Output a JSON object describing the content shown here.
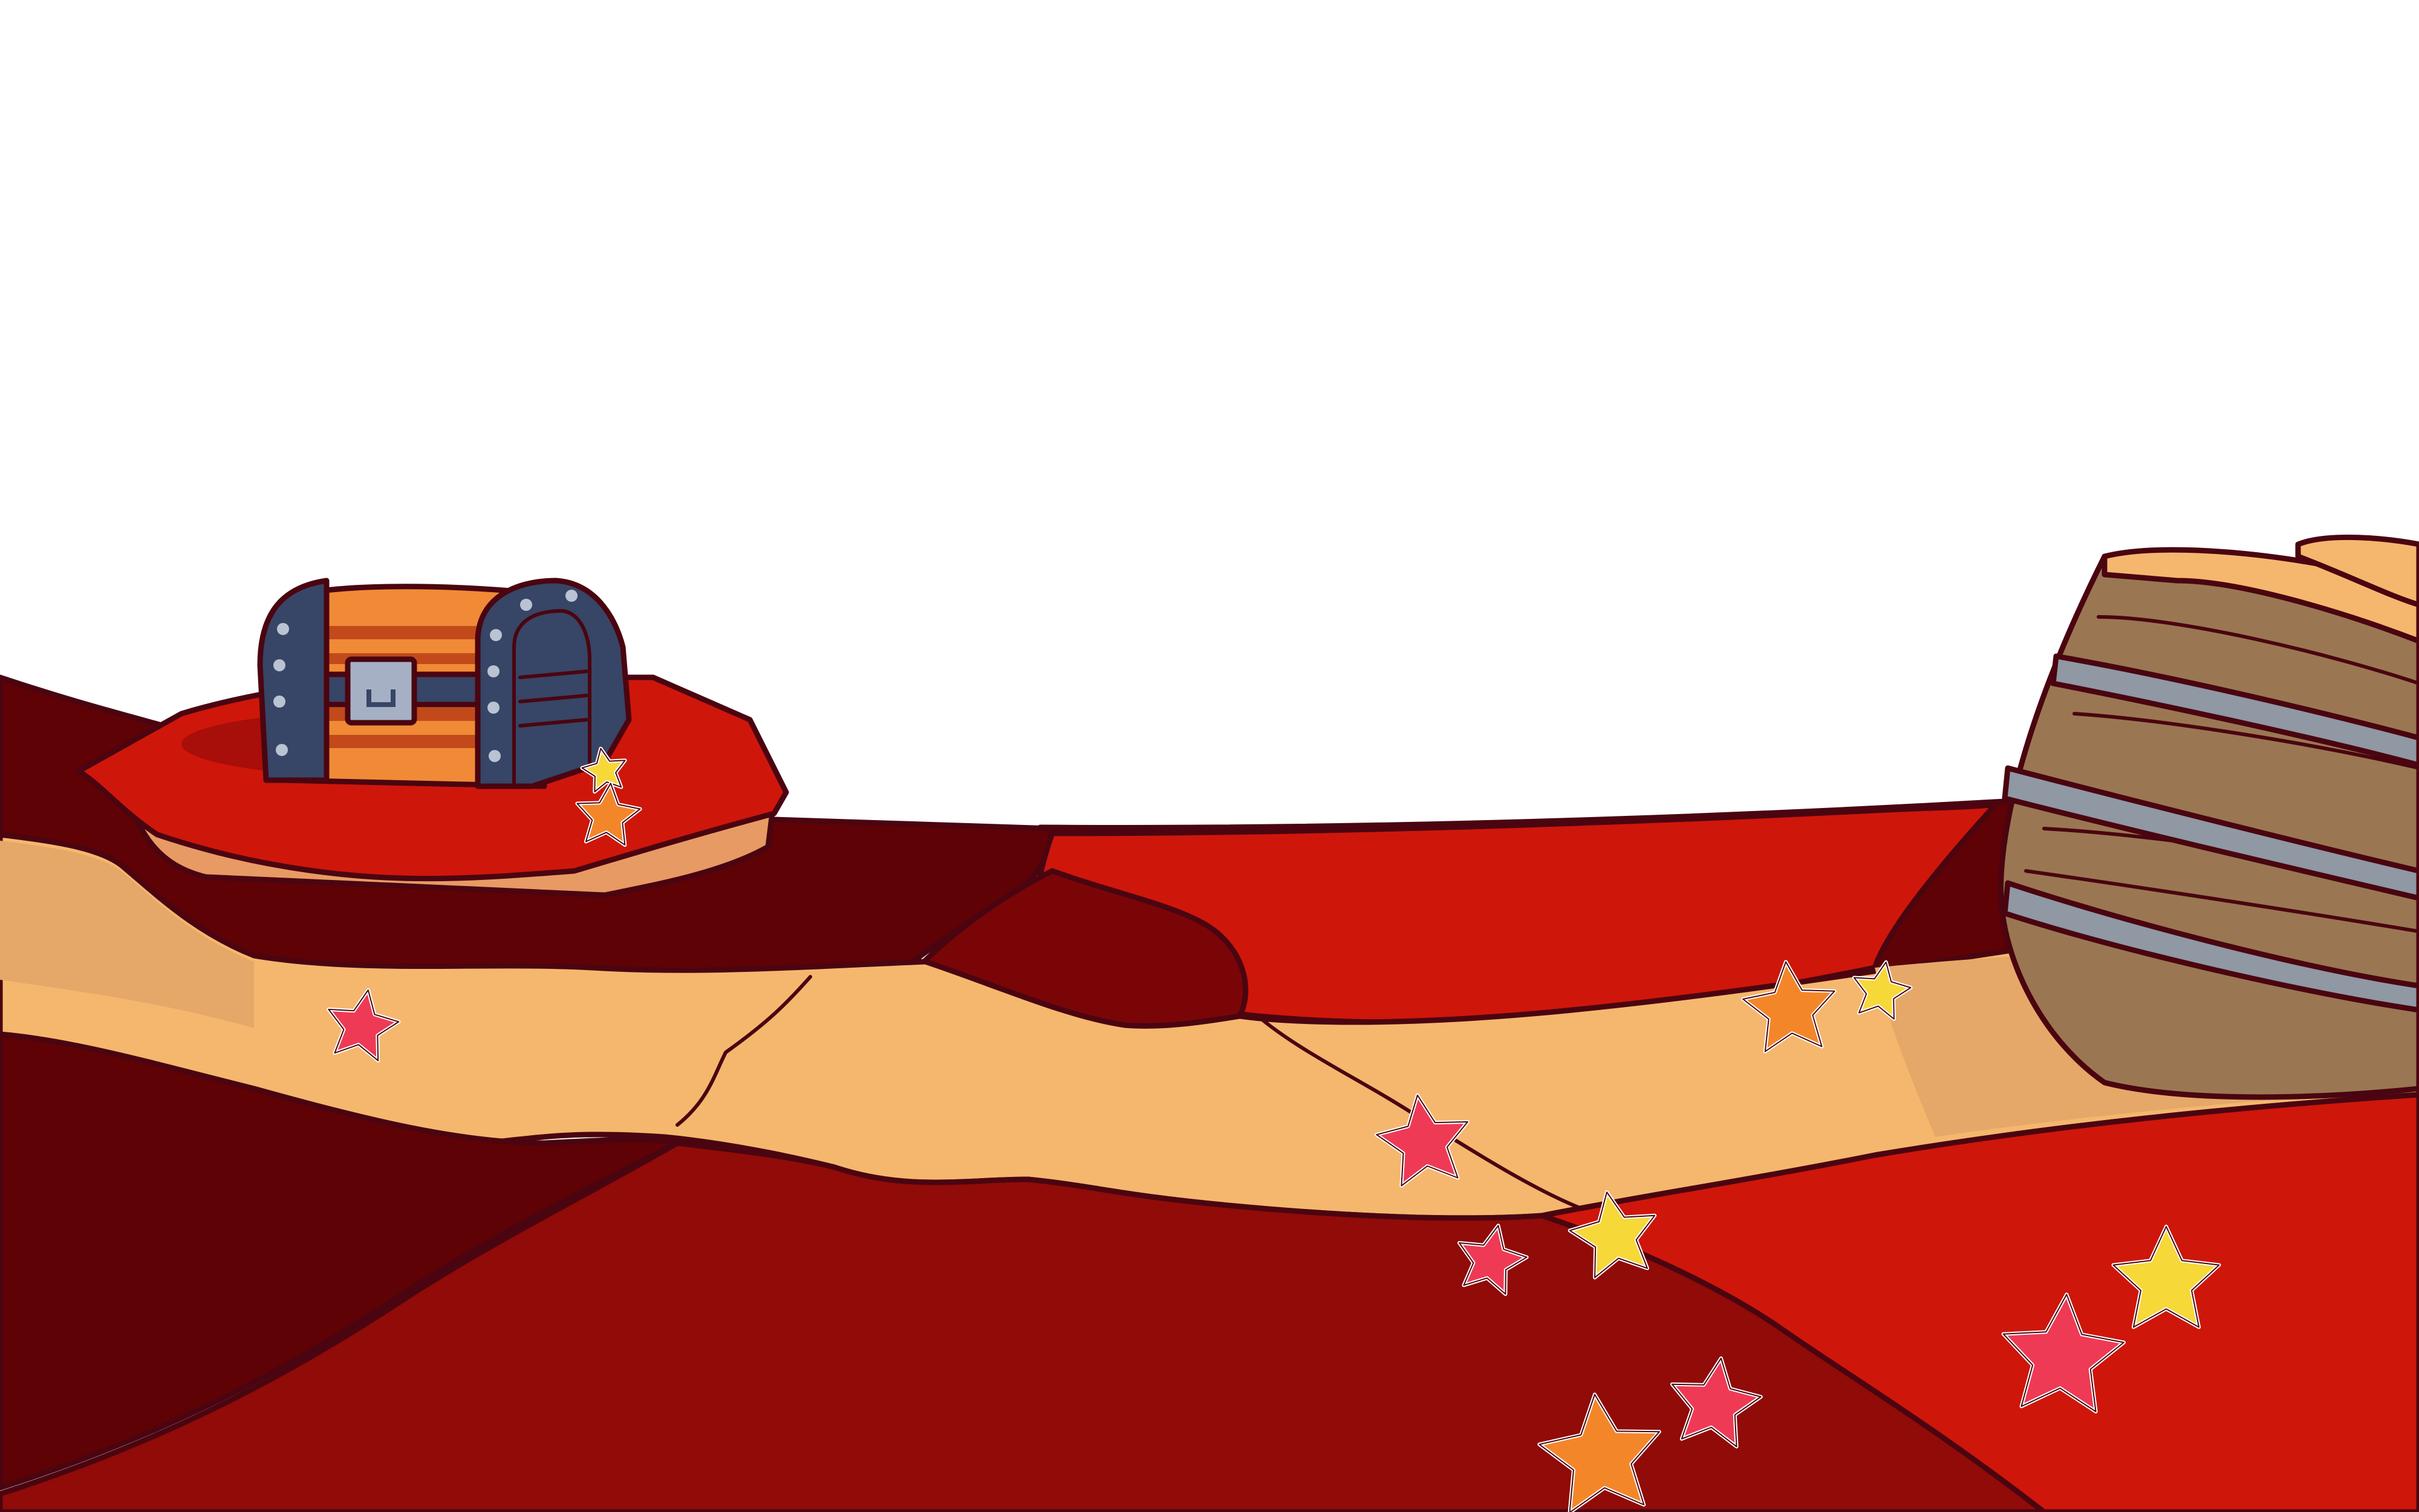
{
  "scene": {
    "name": "red-canyon-level-background",
    "sky_color": "#ffffff",
    "ground_colors": {
      "deep_red": "#5e0206",
      "crimson": "#910b08",
      "bright_red": "#cf160b",
      "sand": "#f5b76e",
      "sand_shadow": "#e6a868",
      "outline": "#4a0510"
    },
    "objects": {
      "treasure_chest": {
        "icon": "treasure-chest-icon",
        "lock_icon": "padlock-icon",
        "band_color": "#374566",
        "wood_colors": [
          "#f08a36",
          "#c24a1a"
        ]
      },
      "wooden_barrel": {
        "icon": "barrel-icon",
        "wood_color": "#9a7752",
        "hoop_color": "#8f98a3"
      }
    },
    "star_colors": {
      "red": "#ef3a55",
      "orange": "#f4862a",
      "yellow": "#f6d838"
    },
    "collectible_stars": [
      {
        "id": "s1",
        "color": "yellow"
      },
      {
        "id": "s2",
        "color": "orange"
      },
      {
        "id": "s3",
        "color": "red"
      },
      {
        "id": "s4",
        "color": "orange"
      },
      {
        "id": "s5",
        "color": "yellow"
      },
      {
        "id": "s6",
        "color": "red"
      },
      {
        "id": "s7",
        "color": "red"
      },
      {
        "id": "s8",
        "color": "yellow"
      },
      {
        "id": "s9",
        "color": "red"
      },
      {
        "id": "s10",
        "color": "orange"
      },
      {
        "id": "s11",
        "color": "red"
      },
      {
        "id": "s12",
        "color": "yellow"
      }
    ]
  }
}
